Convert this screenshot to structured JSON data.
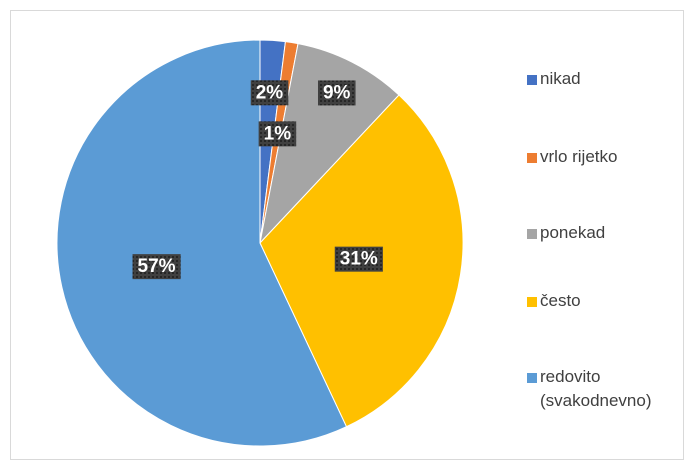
{
  "chart_data": {
    "type": "pie",
    "categories": [
      "nikad",
      "vrlo rijetko",
      "ponekad",
      "često",
      "redovito (svakodnevno)"
    ],
    "values": [
      2,
      1,
      9,
      31,
      57
    ],
    "value_labels": [
      "2%",
      "1%",
      "9%",
      "31%",
      "57%"
    ],
    "colors": [
      "#4472c4",
      "#ed7d31",
      "#a5a5a5",
      "#ffc000",
      "#5b9bd5"
    ],
    "legend": "right"
  }
}
